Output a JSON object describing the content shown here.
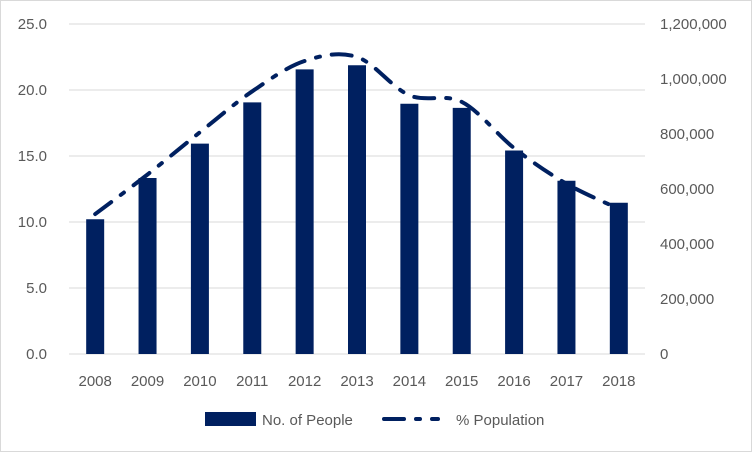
{
  "chart_data": {
    "type": "bar",
    "categories": [
      "2008",
      "2009",
      "2010",
      "2011",
      "2012",
      "2013",
      "2014",
      "2015",
      "2016",
      "2017",
      "2018"
    ],
    "series": [
      {
        "name": "No. of People",
        "type": "bar",
        "axis": "right",
        "values": [
          490000,
          640000,
          765000,
          915000,
          1035000,
          1050000,
          910000,
          895000,
          740000,
          630000,
          550000
        ]
      },
      {
        "name": "% Population",
        "type": "line",
        "axis": "left",
        "values": [
          10.6,
          13.6,
          16.8,
          19.9,
          22.2,
          22.5,
          19.6,
          19.1,
          15.6,
          12.9,
          11.0
        ]
      }
    ],
    "y_left": {
      "ylim": [
        0,
        25
      ],
      "ticks": [
        "0.0",
        "5.0",
        "10.0",
        "15.0",
        "20.0",
        "25.0"
      ]
    },
    "y_right": {
      "ylim": [
        0,
        1200000
      ],
      "ticks": [
        "0",
        "200,000",
        "400,000",
        "600,000",
        "800,000",
        "1,000,000",
        "1,200,000"
      ]
    },
    "grid": true,
    "legend_position": "bottom",
    "colors": {
      "bar": "#002060",
      "line": "#002060",
      "grid": "#d9d9d9",
      "axis_text": "#595959"
    }
  }
}
